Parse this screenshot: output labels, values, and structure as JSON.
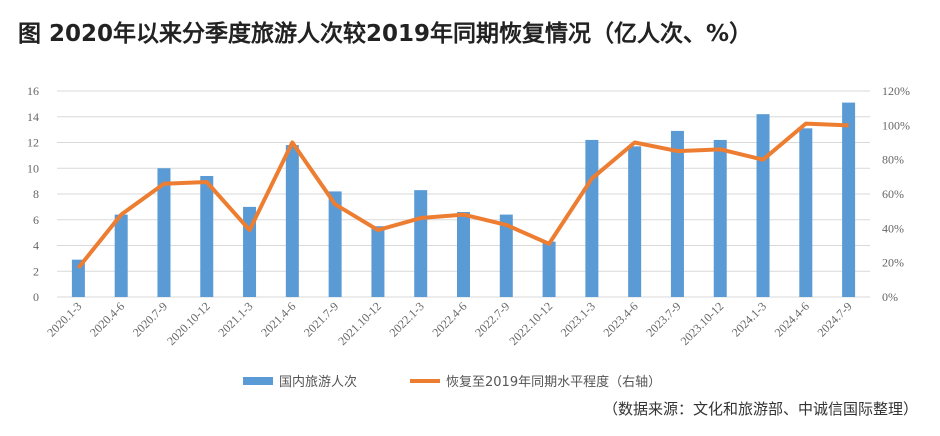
{
  "title": "图 2020年以来分季度旅游人次较2019年同期恢复情况（亿人次、%）",
  "source": "（数据来源：文化和旅游部、中诚信国际整理）",
  "colors": {
    "bar": "#5b9bd5",
    "line": "#ed7d31",
    "grid": "#d9d9d9"
  },
  "chart_data": {
    "type": "bar+line",
    "title": "图 2020年以来分季度旅游人次较2019年同期恢复情况（亿人次、%）",
    "categories": [
      "2020.1-3",
      "2020.4-6",
      "2020.7-9",
      "2020.10-12",
      "2021.1-3",
      "2021.4-6",
      "2021.7-9",
      "2021.10-12",
      "2022.1-3",
      "2022.4-6",
      "2022.7-9",
      "2022.10-12",
      "2023.1-3",
      "2023.4-6",
      "2023.7-9",
      "2023.10-12",
      "2024.1-3",
      "2024.4-6",
      "2024.7-9"
    ],
    "series": [
      {
        "name": "国内旅游人次",
        "type": "bar",
        "axis": "left",
        "values": [
          2.9,
          6.4,
          10.0,
          9.4,
          7.0,
          11.8,
          8.2,
          5.5,
          8.3,
          6.6,
          6.4,
          4.3,
          12.2,
          11.7,
          12.9,
          12.2,
          14.2,
          13.1,
          15.1
        ]
      },
      {
        "name": "恢复至2019年同期水平程度（右轴）",
        "type": "line",
        "axis": "right",
        "values": [
          17,
          48,
          66,
          67,
          39,
          90,
          54,
          39,
          46,
          48,
          42,
          31,
          69,
          90,
          85,
          86,
          80,
          101,
          100
        ]
      }
    ],
    "left_axis": {
      "range": [
        0,
        16
      ],
      "ticks": [
        "0",
        "2",
        "4",
        "6",
        "8",
        "10",
        "12",
        "14",
        "16"
      ]
    },
    "right_axis": {
      "range": [
        0,
        120
      ],
      "ticks": [
        "0%",
        "20%",
        "40%",
        "60%",
        "80%",
        "100%",
        "120%"
      ]
    },
    "grid": true,
    "legend_position": "bottom"
  }
}
